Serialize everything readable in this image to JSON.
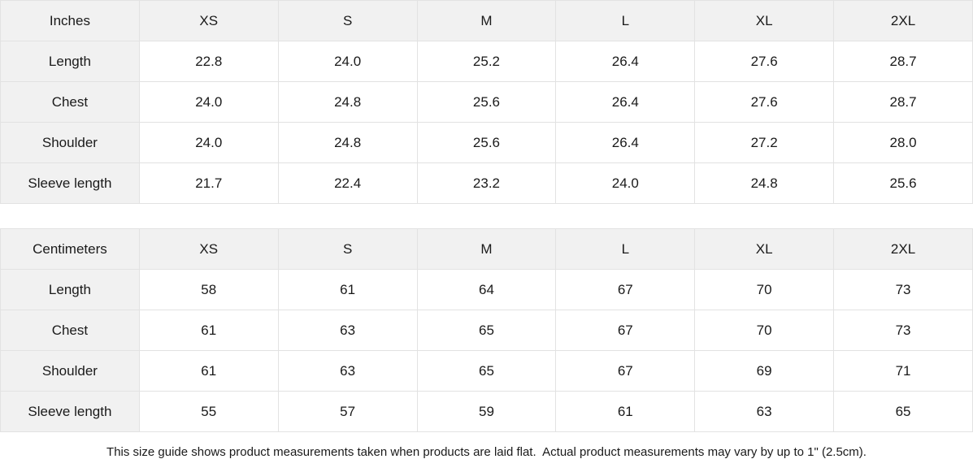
{
  "size_guide": {
    "columns": [
      "XS",
      "S",
      "M",
      "L",
      "XL",
      "2XL"
    ],
    "sections": [
      {
        "unit_label": "Inches",
        "rows": [
          {
            "label": "Length",
            "values": [
              "22.8",
              "24.0",
              "25.2",
              "26.4",
              "27.6",
              "28.7"
            ]
          },
          {
            "label": "Chest",
            "values": [
              "24.0",
              "24.8",
              "25.6",
              "26.4",
              "27.6",
              "28.7"
            ]
          },
          {
            "label": "Shoulder",
            "values": [
              "24.0",
              "24.8",
              "25.6",
              "26.4",
              "27.2",
              "28.0"
            ]
          },
          {
            "label": "Sleeve length",
            "values": [
              "21.7",
              "22.4",
              "23.2",
              "24.0",
              "24.8",
              "25.6"
            ]
          }
        ]
      },
      {
        "unit_label": "Centimeters",
        "rows": [
          {
            "label": "Length",
            "values": [
              "58",
              "61",
              "64",
              "67",
              "70",
              "73"
            ]
          },
          {
            "label": "Chest",
            "values": [
              "61",
              "63",
              "65",
              "67",
              "70",
              "73"
            ]
          },
          {
            "label": "Shoulder",
            "values": [
              "61",
              "63",
              "65",
              "67",
              "69",
              "71"
            ]
          },
          {
            "label": "Sleeve length",
            "values": [
              "55",
              "57",
              "59",
              "61",
              "63",
              "65"
            ]
          }
        ]
      }
    ],
    "footnote": "This size guide shows product measurements taken when products are laid flat.  Actual product measurements may vary by up to 1\" (2.5cm).",
    "colors": {
      "header_bg": "#f1f1f1",
      "border": "#e2e2e2",
      "text": "#1a1a1a"
    }
  }
}
